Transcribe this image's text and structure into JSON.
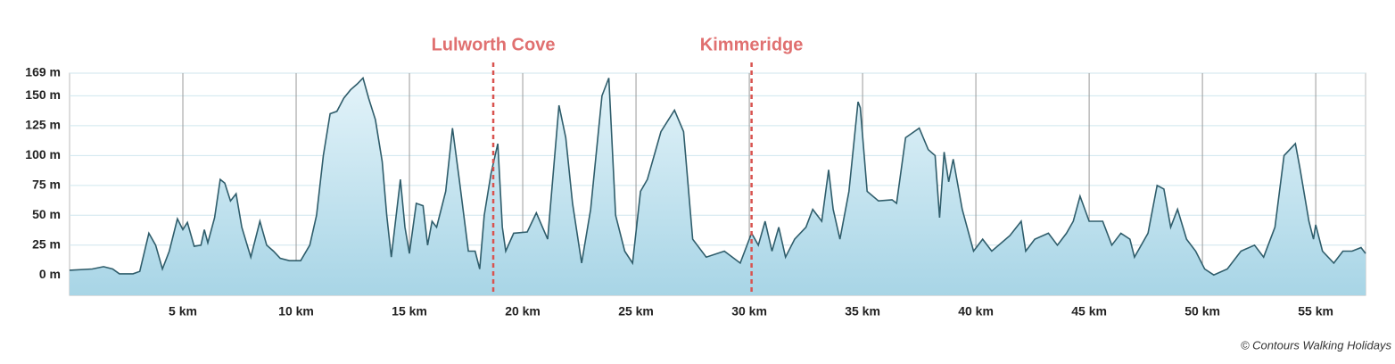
{
  "chart_data": {
    "type": "area",
    "x": [
      0,
      1,
      1.5,
      1.9,
      2.2,
      2.8,
      3.1,
      3.5,
      3.8,
      4.1,
      4.4,
      4.76,
      5.0,
      5.2,
      5.5,
      5.8,
      5.95,
      6.1,
      6.4,
      6.65,
      6.85,
      7.1,
      7.35,
      7.6,
      8.0,
      8.4,
      8.7,
      9.0,
      9.3,
      9.7,
      10.2,
      10.6,
      10.9,
      11.2,
      11.5,
      11.8,
      12.1,
      12.4,
      12.7,
      12.95,
      13.2,
      13.5,
      13.8,
      14.0,
      14.2,
      14.6,
      14.8,
      15.0,
      15.3,
      15.6,
      15.8,
      16.0,
      16.2,
      16.6,
      16.9,
      17.2,
      17.6,
      17.9,
      18.1,
      18.3,
      18.6,
      18.9,
      19.1,
      19.25,
      19.6,
      20.2,
      20.6,
      21.1,
      21.6,
      21.9,
      22.2,
      22.6,
      23.0,
      23.5,
      23.8,
      24.1,
      24.5,
      24.85,
      25.2,
      25.5,
      26.1,
      26.7,
      27.1,
      27.5,
      28.1,
      28.9,
      29.6,
      30.1,
      30.4,
      30.7,
      31.0,
      31.3,
      31.6,
      32.0,
      32.5,
      32.8,
      33.2,
      33.5,
      33.7,
      34.0,
      34.4,
      34.8,
      34.9,
      35.2,
      35.7,
      36.3,
      36.5,
      36.9,
      37.5,
      37.9,
      38.2,
      38.4,
      38.6,
      38.8,
      39.0,
      39.4,
      39.9,
      40.3,
      40.7,
      41.5,
      42.0,
      42.2,
      42.6,
      43.2,
      43.6,
      44.0,
      44.3,
      44.6,
      45.0,
      45.6,
      46.0,
      46.4,
      46.8,
      47.0,
      47.6,
      48.0,
      48.3,
      48.6,
      48.9,
      49.3,
      49.7,
      50.1,
      50.5,
      51.1,
      51.7,
      52.3,
      52.7,
      53.2,
      53.6,
      54.1,
      54.3,
      54.7,
      54.9,
      55.0,
      55.3,
      55.8,
      56.2,
      56.6,
      57.0,
      57.2
    ],
    "series": [
      {
        "color": "#2f5d6b",
        "values": [
          4,
          5,
          7,
          5,
          1,
          1,
          3,
          35,
          25,
          5,
          20,
          47,
          38,
          44,
          24,
          25,
          38,
          27,
          48,
          80,
          77,
          62,
          68,
          40,
          15,
          45,
          25,
          20,
          14,
          12,
          12,
          25,
          50,
          100,
          135,
          137,
          148,
          155,
          160,
          165,
          148,
          130,
          95,
          50,
          15,
          80,
          40,
          18,
          60,
          58,
          25,
          45,
          40,
          70,
          123,
          80,
          20,
          20,
          5,
          50,
          85,
          110,
          40,
          20,
          35,
          36,
          52,
          30,
          142,
          115,
          60,
          10,
          55,
          150,
          165,
          50,
          20,
          10,
          70,
          80,
          120,
          138,
          120,
          30,
          15,
          20,
          10,
          35,
          25,
          45,
          20,
          40,
          15,
          30,
          40,
          55,
          45,
          88,
          55,
          30,
          70,
          145,
          140,
          70,
          62,
          63,
          60,
          115,
          123,
          105,
          100,
          48,
          103,
          78,
          97,
          55,
          20,
          30,
          20,
          33,
          45,
          20,
          30,
          35,
          25,
          35,
          45,
          66,
          45,
          45,
          25,
          35,
          30,
          15,
          35,
          75,
          72,
          40,
          55,
          30,
          20,
          5,
          0,
          5,
          20,
          25,
          15,
          40,
          100,
          110,
          90,
          45,
          30,
          42,
          20,
          10,
          20,
          20,
          23,
          18
        ]
      }
    ],
    "xlim": [
      0,
      57.2
    ],
    "ylim": [
      -17,
      169
    ],
    "xticks": [
      {
        "value": 5,
        "label": "5 km"
      },
      {
        "value": 10,
        "label": "10 km"
      },
      {
        "value": 15,
        "label": "15 km"
      },
      {
        "value": 20,
        "label": "20 km"
      },
      {
        "value": 25,
        "label": "25 km"
      },
      {
        "value": 30,
        "label": "30 km"
      },
      {
        "value": 35,
        "label": "35 km"
      },
      {
        "value": 40,
        "label": "40 km"
      },
      {
        "value": 45,
        "label": "45 km"
      },
      {
        "value": 50,
        "label": "50 km"
      },
      {
        "value": 55,
        "label": "55 km"
      }
    ],
    "yticks": [
      {
        "value": 0,
        "label": "0 m"
      },
      {
        "value": 25,
        "label": "25 m"
      },
      {
        "value": 50,
        "label": "50 m"
      },
      {
        "value": 75,
        "label": "75 m"
      },
      {
        "value": 100,
        "label": "100 m"
      },
      {
        "value": 125,
        "label": "125 m"
      },
      {
        "value": 150,
        "label": "150 m"
      },
      {
        "value": 169,
        "label": "169 m"
      }
    ],
    "annotations": [
      {
        "label": "Lulworth Cove",
        "x": 18.7
      },
      {
        "label": "Kimmeridge",
        "x": 30.1
      }
    ],
    "credit": "© Contours Walking Holidays"
  }
}
